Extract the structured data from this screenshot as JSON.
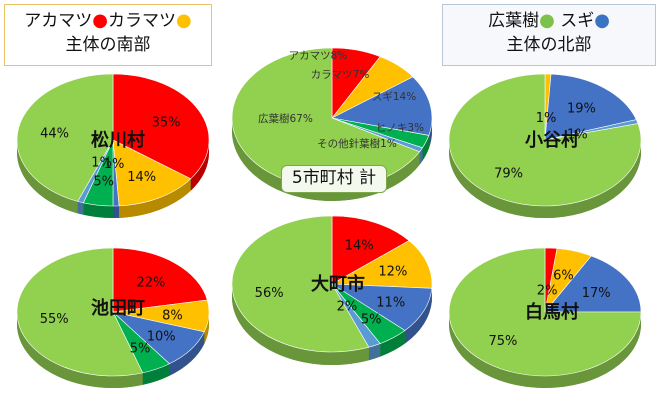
{
  "legend": {
    "south": {
      "line1": [
        {
          "text": "アカマツ",
          "dot": "#ff0000"
        },
        {
          "text": "カラマツ",
          "dot": "#ffc000"
        }
      ],
      "line2": "主体の南部"
    },
    "north": {
      "line1": [
        {
          "text": "広葉樹",
          "dot": "#7dc04a"
        },
        {
          "text": "スギ",
          "dot": "#3a74c0"
        }
      ],
      "line2": "主体の北部"
    }
  },
  "colors": {
    "アカマツ": "#ff0000",
    "カラマツ": "#ffc000",
    "スギ": "#4472c4",
    "ヒノキ": "#00b050",
    "その他針葉樹": "#5b9bd5",
    "広葉樹": "#92d050"
  },
  "total_label": "5市町村 計",
  "chart_data": [
    {
      "type": "pie",
      "name": "松川村",
      "categories": [
        "アカマツ",
        "カラマツ",
        "スギ",
        "ヒノキ",
        "その他針葉樹",
        "広葉樹"
      ],
      "values": [
        35,
        14,
        1,
        5,
        1,
        44
      ],
      "labels": [
        "35%",
        "14%",
        "1%",
        "5%",
        "1%",
        "44%"
      ]
    },
    {
      "type": "pie",
      "name": "5市町村 計",
      "categories": [
        "アカマツ",
        "カラマツ",
        "スギ",
        "ヒノキ",
        "その他針葉樹",
        "広葉樹"
      ],
      "values": [
        8,
        7,
        14,
        3,
        1,
        67
      ],
      "labels": [
        "アカマツ8%",
        "カラマツ7%",
        "スギ14%",
        "ヒノキ3%",
        "その他針葉樹1%",
        "広葉樹67%"
      ]
    },
    {
      "type": "pie",
      "name": "小谷村",
      "categories": [
        "アカマツ",
        "カラマツ",
        "スギ",
        "ヒノキ",
        "その他針葉樹",
        "広葉樹"
      ],
      "values": [
        0,
        1,
        19,
        0,
        1,
        79
      ],
      "labels": [
        "",
        "1%",
        "19%",
        "",
        "1%",
        "79%"
      ]
    },
    {
      "type": "pie",
      "name": "池田町",
      "categories": [
        "アカマツ",
        "カラマツ",
        "スギ",
        "ヒノキ",
        "その他針葉樹",
        "広葉樹"
      ],
      "values": [
        22,
        8,
        10,
        5,
        0,
        55
      ],
      "labels": [
        "22%",
        "8%",
        "10%",
        "5%",
        "",
        "55%"
      ]
    },
    {
      "type": "pie",
      "name": "大町市",
      "categories": [
        "アカマツ",
        "カラマツ",
        "スギ",
        "ヒノキ",
        "その他針葉樹",
        "広葉樹"
      ],
      "values": [
        14,
        12,
        11,
        5,
        2,
        56
      ],
      "labels": [
        "14%",
        "12%",
        "11%",
        "5%",
        "2%",
        "56%"
      ]
    },
    {
      "type": "pie",
      "name": "白馬村",
      "categories": [
        "アカマツ",
        "カラマツ",
        "スギ",
        "ヒノキ",
        "その他針葉樹",
        "広葉樹"
      ],
      "values": [
        2,
        6,
        17,
        0,
        0,
        75
      ],
      "labels": [
        "2%",
        "6%",
        "17%",
        "",
        "",
        "75%"
      ]
    }
  ]
}
